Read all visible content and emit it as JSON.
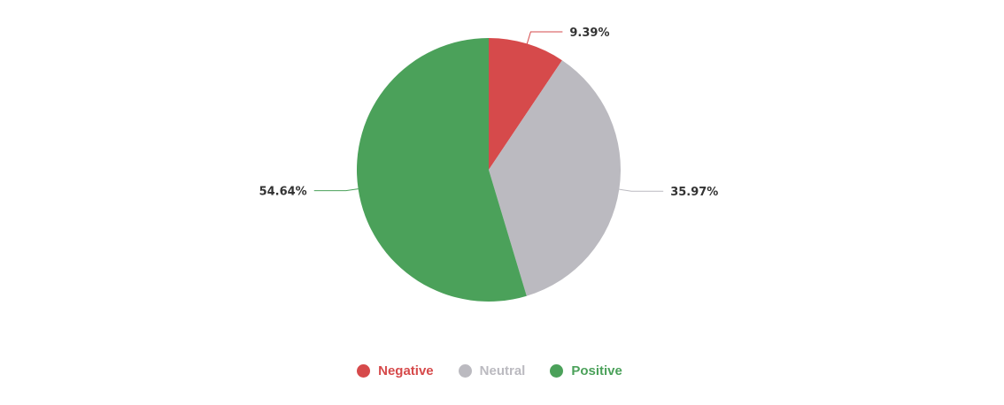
{
  "chart_data": {
    "type": "pie",
    "title": "",
    "slices": [
      {
        "name": "Negative",
        "value": 9.39,
        "label": "9.39%",
        "color": "#d64a4b"
      },
      {
        "name": "Neutral",
        "value": 35.97,
        "label": "35.97%",
        "color": "#bbbac0"
      },
      {
        "name": "Positive",
        "value": 54.64,
        "label": "54.64%",
        "color": "#4ba15a"
      }
    ],
    "legend_position": "bottom"
  }
}
